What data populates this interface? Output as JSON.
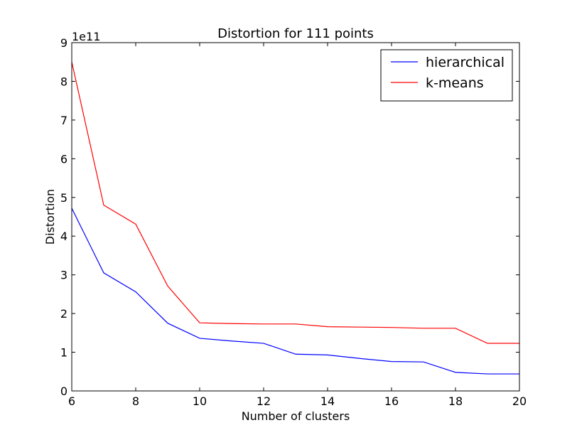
{
  "chart_data": {
    "type": "line",
    "title": "Distortion for 111 points",
    "xlabel": "Number of clusters",
    "ylabel": "Distortion",
    "y_offset_label": "1e11",
    "xlim": [
      6,
      20
    ],
    "ylim": [
      0,
      9
    ],
    "x_ticks": [
      6,
      8,
      10,
      12,
      14,
      16,
      18,
      20
    ],
    "y_ticks": [
      0,
      1,
      2,
      3,
      4,
      5,
      6,
      7,
      8,
      9
    ],
    "grid": false,
    "legend_position": "top-right",
    "x": [
      6,
      7,
      8,
      9,
      10,
      11,
      12,
      13,
      14,
      15,
      16,
      17,
      18,
      19,
      20
    ],
    "series": [
      {
        "name": "hierarchical",
        "color": "#0000ff",
        "values": [
          4.72,
          3.05,
          2.56,
          1.75,
          1.36,
          1.29,
          1.23,
          0.95,
          0.93,
          0.84,
          0.76,
          0.75,
          0.48,
          0.44,
          0.44
        ]
      },
      {
        "name": "k-means",
        "color": "#ff0000",
        "values": [
          8.5,
          4.8,
          4.31,
          2.71,
          1.76,
          1.74,
          1.73,
          1.73,
          1.66,
          1.65,
          1.64,
          1.62,
          1.62,
          1.23,
          1.23
        ]
      }
    ]
  }
}
